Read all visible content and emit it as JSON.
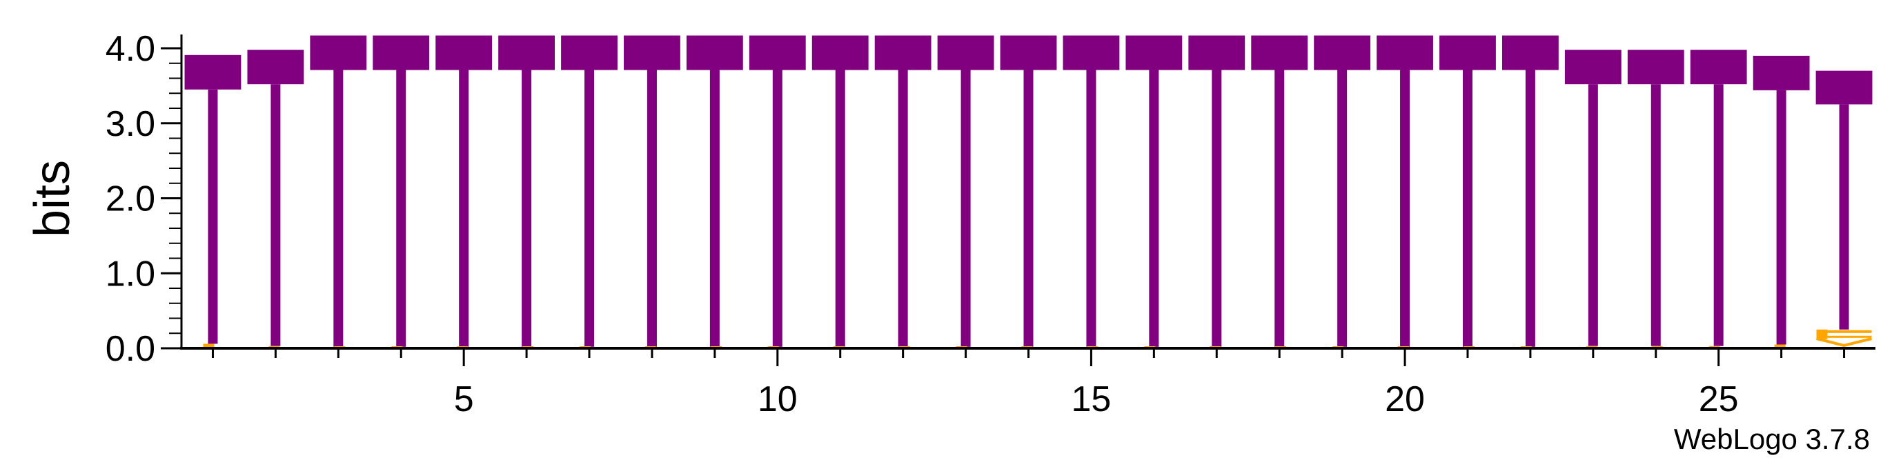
{
  "chart_data": {
    "type": "sequence-logo",
    "ylabel": "bits",
    "ylim": [
      0,
      4.0
    ],
    "xlim": [
      0.5,
      27.5
    ],
    "y_ticks": [
      "0.0",
      "1.0",
      "2.0",
      "3.0",
      "4.0"
    ],
    "y_tick_values": [
      0,
      1,
      2,
      3,
      4
    ],
    "y_minor_step": 0.2,
    "x_ticks": [
      "5",
      "10",
      "15",
      "20",
      "25"
    ],
    "x_tick_values": [
      5,
      10,
      15,
      20,
      25
    ],
    "positions": [
      1,
      2,
      3,
      4,
      5,
      6,
      7,
      8,
      9,
      10,
      11,
      12,
      13,
      14,
      15,
      16,
      17,
      18,
      19,
      20,
      21,
      22,
      23,
      24,
      25,
      26,
      27
    ],
    "series": [
      {
        "letter": "T",
        "color": "#800080",
        "values": [
          3.85,
          3.95,
          4.15,
          4.15,
          4.15,
          4.15,
          4.15,
          4.15,
          4.15,
          4.15,
          4.15,
          4.15,
          4.15,
          4.15,
          4.15,
          4.15,
          4.15,
          4.15,
          4.15,
          4.15,
          4.15,
          4.15,
          3.95,
          3.95,
          3.95,
          3.85,
          3.45
        ]
      },
      {
        "letter": "minor",
        "color": "#FFA500",
        "values": [
          0.06,
          0.03,
          0.02,
          0.02,
          0.02,
          0.02,
          0.02,
          0.02,
          0.02,
          0.02,
          0.02,
          0.02,
          0.02,
          0.02,
          0.02,
          0.02,
          0.02,
          0.02,
          0.02,
          0.02,
          0.02,
          0.02,
          0.03,
          0.03,
          0.03,
          0.05,
          0.25
        ]
      }
    ],
    "footer": "WebLogo 3.7.8"
  }
}
